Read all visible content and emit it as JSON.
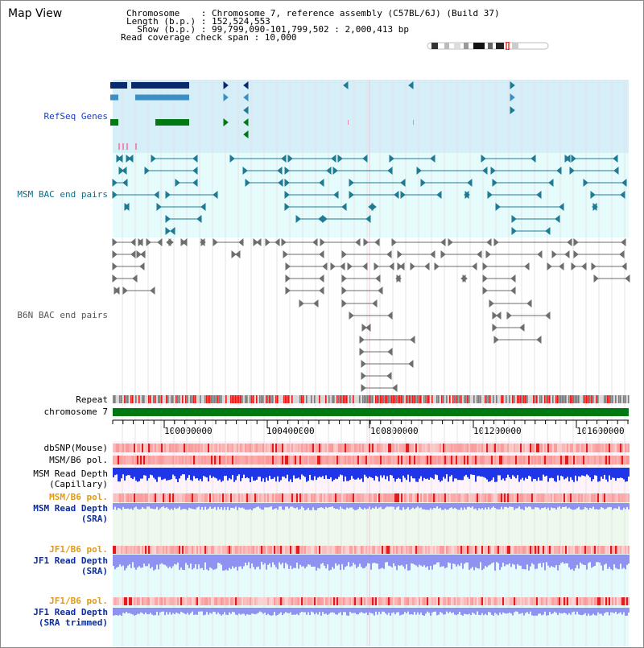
{
  "title": "Map View",
  "header": {
    "line1": "Chromosome    : Chromosome 7, reference assembly (C57BL/6J) (Build 37)",
    "line2": "Length (b.p.) : 152,524,553",
    "line3": "  Show (b.p.) : 99,799,090-101,799,502 : 2,000,413 bp",
    "line4": "Read coverage check span : 10,000"
  },
  "tracks": {
    "refseq": "RefSeq Genes",
    "msm_bac": "MSM BAC end pairs",
    "b6n_bac": "B6N BAC end pairs",
    "repeat": "Repeat",
    "chromosome": "chromosome 7",
    "dbsnp": "dbSNP(Mouse)",
    "msm_b6_pol1": "MSM/B6 pol.",
    "msm_depth_cap": "MSM Read Depth",
    "msm_depth_cap2": "(Capillary)",
    "msm_b6_pol2": "MSM/B6 pol.",
    "msm_depth_sra": "MSM Read Depth",
    "msm_depth_sra2": "(SRA)",
    "jf1_b6_pol1": "JF1/B6 pol.",
    "jf1_depth_sra": "JF1 Read Depth",
    "jf1_depth_sra2": "(SRA)",
    "jf1_b6_pol2": "JF1/B6 pol.",
    "jf1_depth_trim": "JF1 Read Depth",
    "jf1_depth_trim2": "(SRA trimmed)"
  },
  "axis": {
    "ticks": [
      "100000000",
      "100400000",
      "100800000",
      "101200000",
      "101600000"
    ]
  },
  "colors": {
    "refseq_bg": "#d5eef8",
    "bac_bg": "#e6fbfb",
    "dark_blue": "#0a2a6e",
    "steel": "#3b8fc2",
    "green": "#007a10",
    "teal": "#1f7a94",
    "gray": "#555555",
    "chrom": "#007a10",
    "depth_blue": "#1f35e8",
    "depth_light": "#8f92f0"
  }
}
